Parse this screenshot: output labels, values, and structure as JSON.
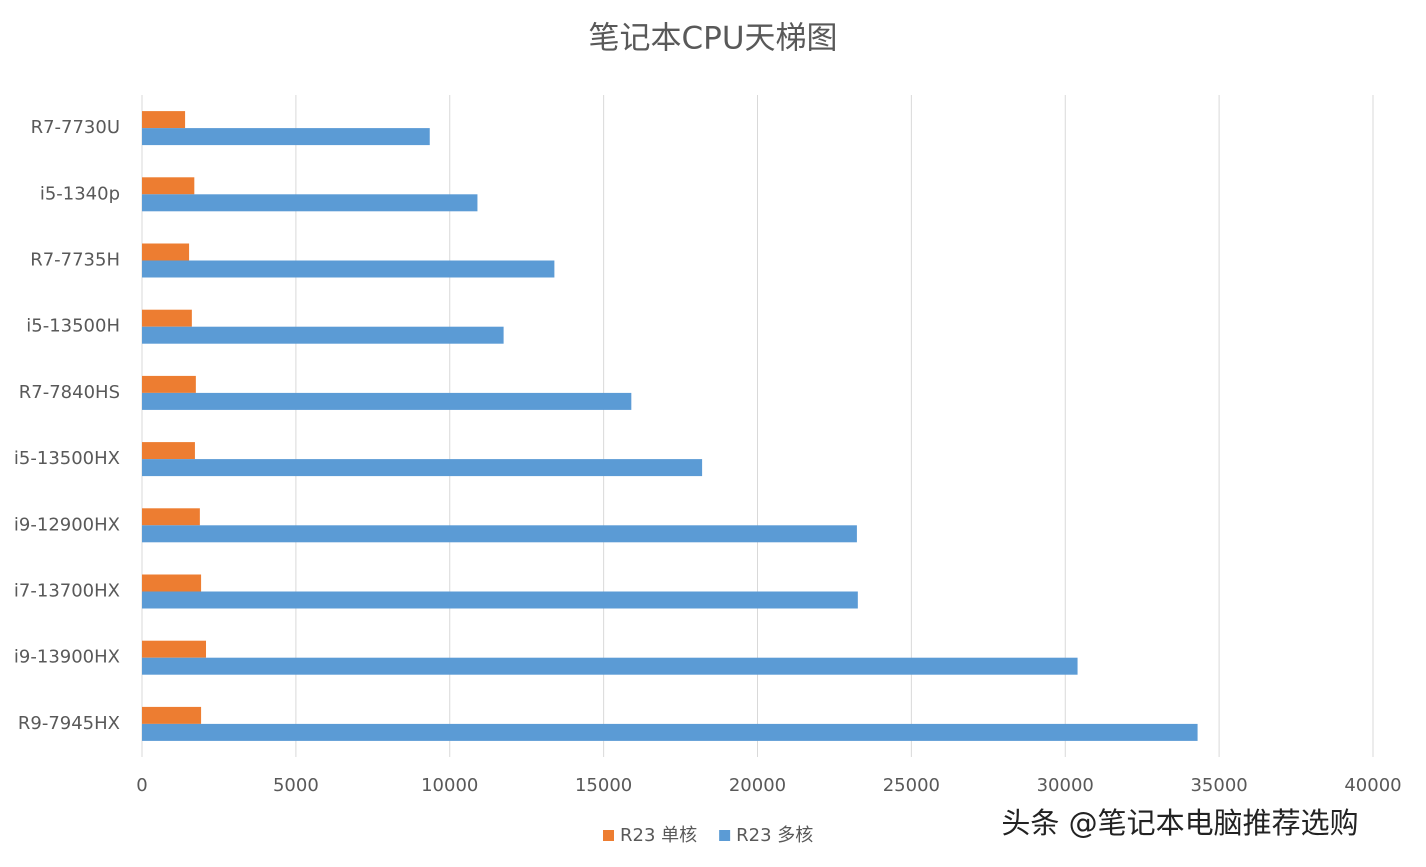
{
  "chart_data": {
    "type": "hbar",
    "title": "笔记本CPU天梯图",
    "categories": [
      "R7-7730U",
      "i5-1340p",
      "R7-7735H",
      "i5-13500H",
      "R7-7840HS",
      "i5-13500HX",
      "i9-12900HX",
      "i7-13700HX",
      "i9-13900HX",
      "R9-7945HX"
    ],
    "series": [
      {
        "name": "R23 单核",
        "color": "#ed7d31",
        "values": [
          1400,
          1700,
          1530,
          1620,
          1750,
          1720,
          1880,
          1920,
          2080,
          1920
        ]
      },
      {
        "name": "R23 多核",
        "color": "#5b9bd5",
        "values": [
          9350,
          10900,
          13400,
          11750,
          15900,
          18200,
          23230,
          23260,
          30400,
          34300
        ]
      }
    ],
    "xlim": [
      0,
      40000
    ],
    "xticks": [
      0,
      5000,
      10000,
      15000,
      20000,
      25000,
      30000,
      35000,
      40000
    ],
    "grid": true,
    "legend": "bottom",
    "watermark": "头条 @笔记本电脑推荐选购"
  }
}
